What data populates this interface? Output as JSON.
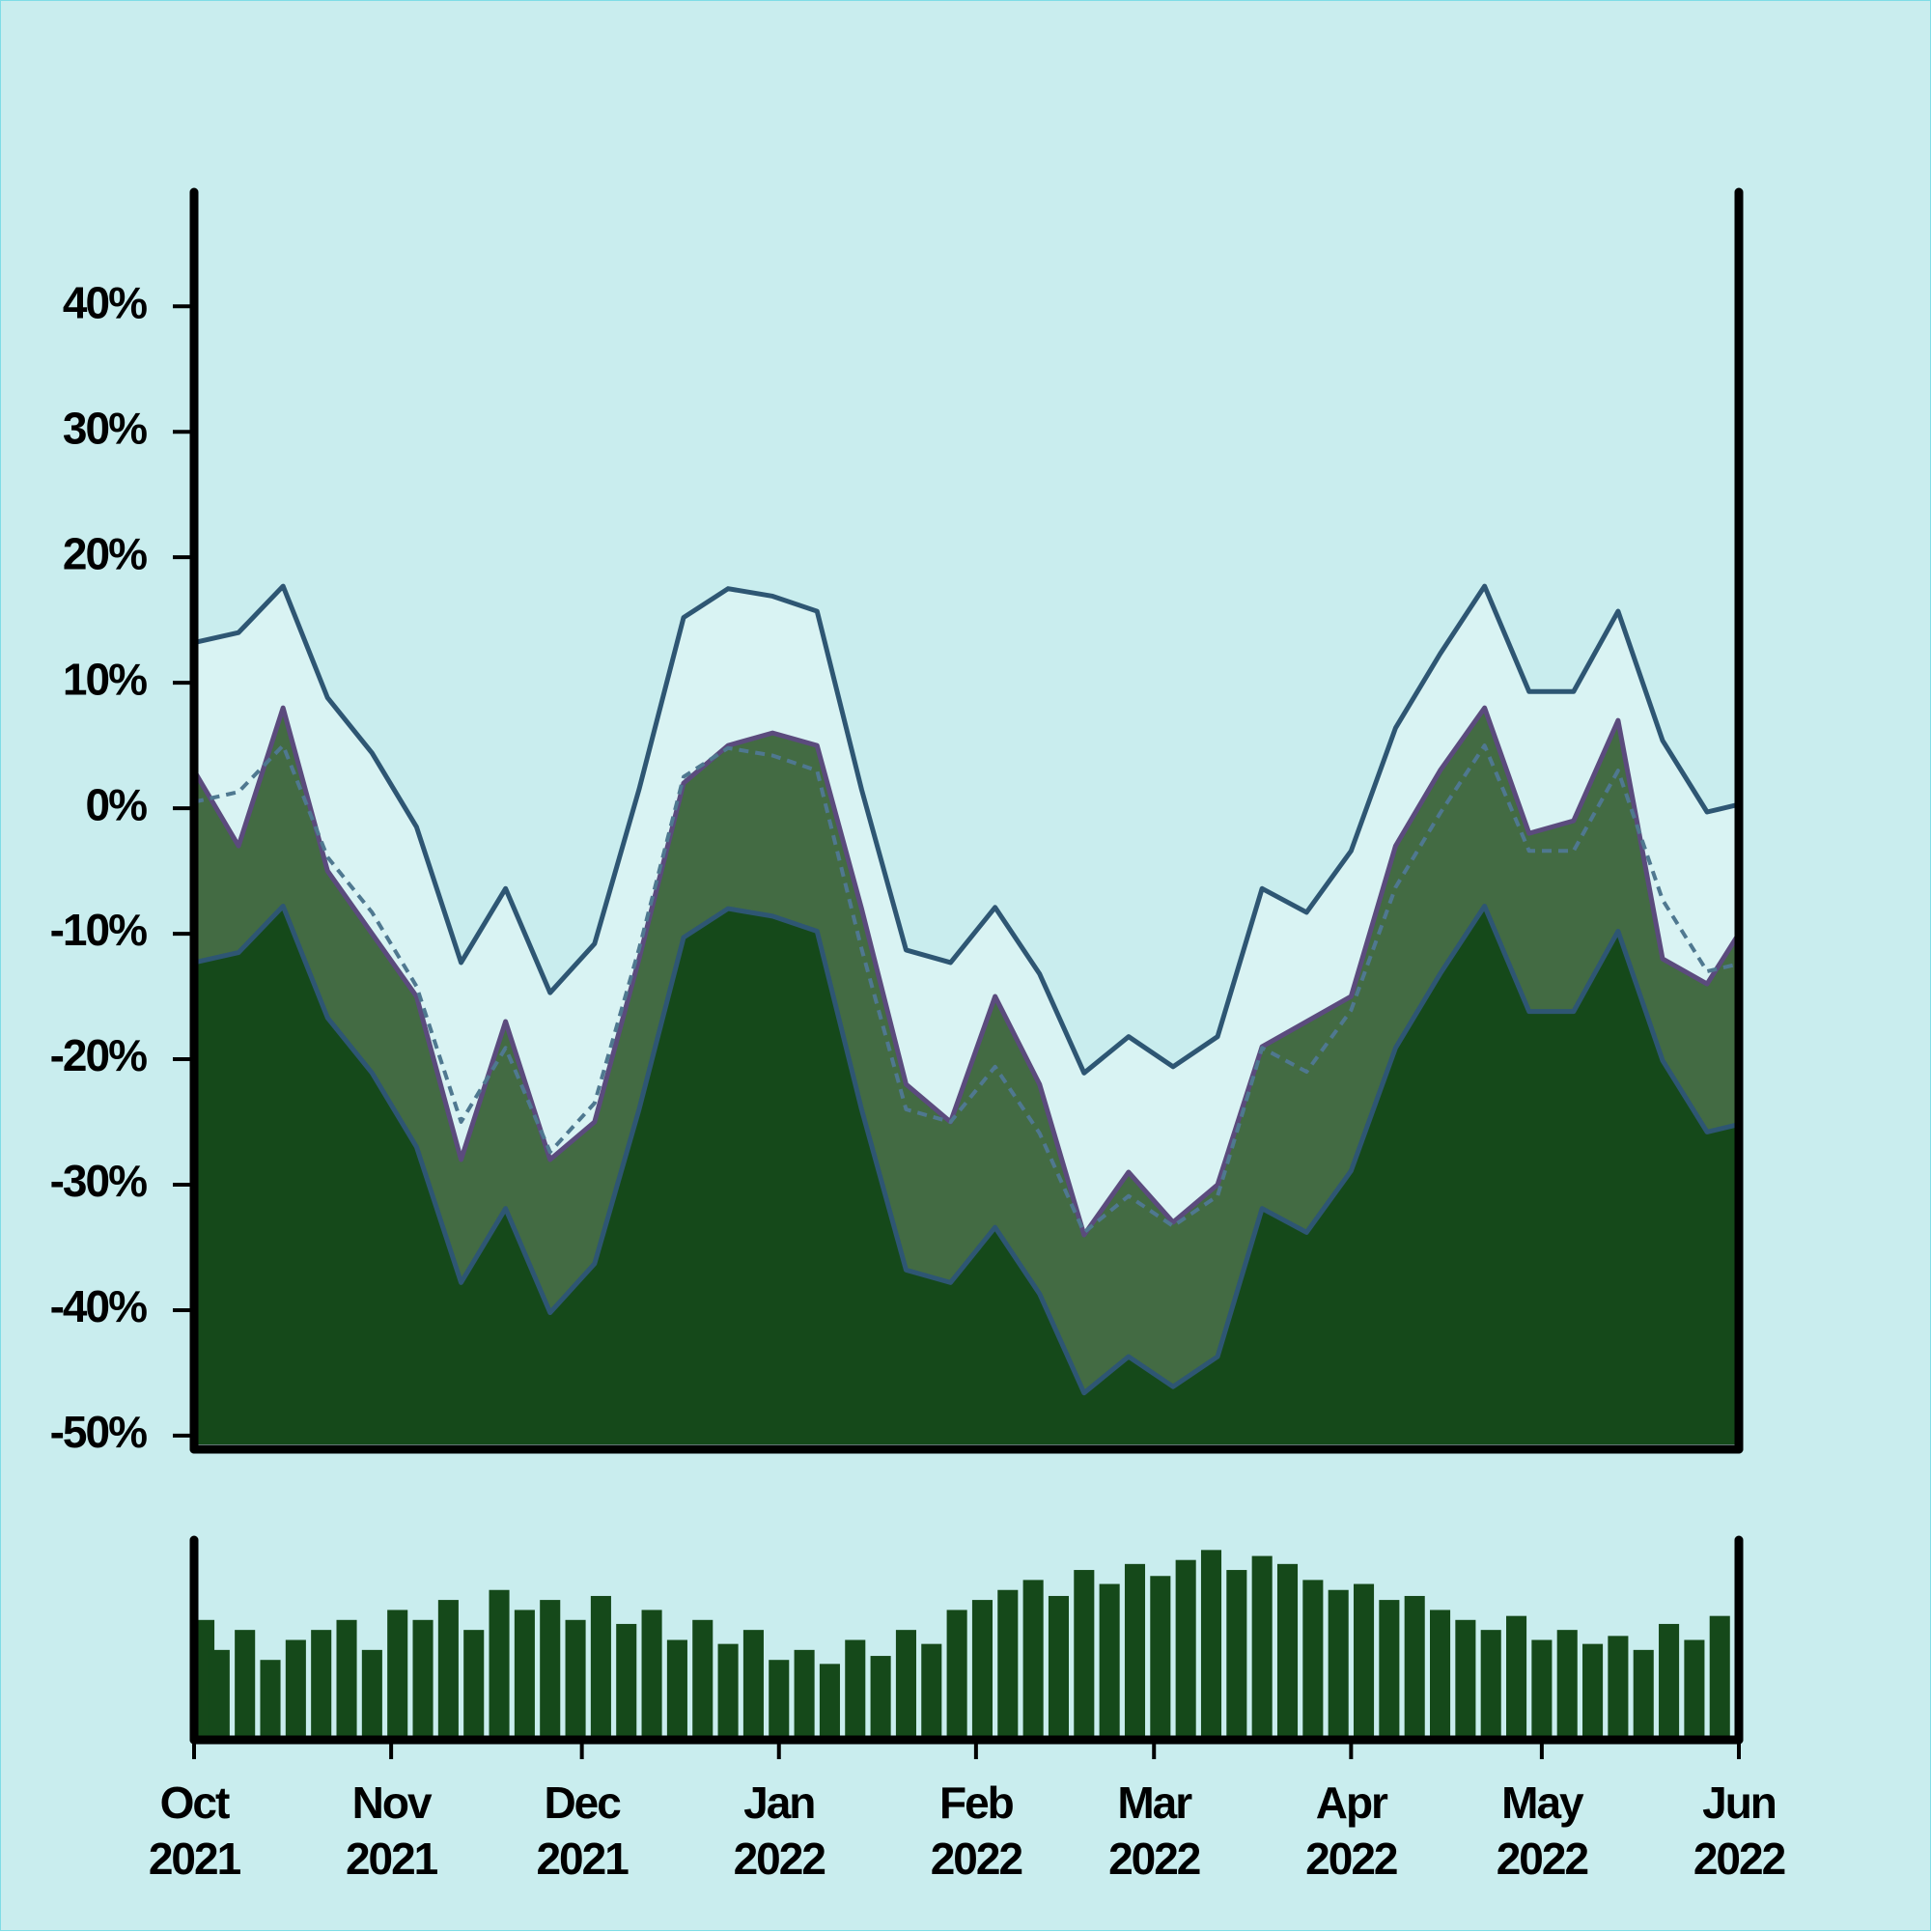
{
  "chart_data": [
    {
      "type": "area",
      "x": [
        0,
        7,
        14,
        21,
        28,
        35,
        42,
        49,
        56,
        63,
        70,
        77,
        84,
        91,
        98,
        105,
        112,
        119,
        126,
        133,
        140,
        147,
        154,
        161,
        168,
        175,
        182,
        189,
        196,
        203,
        210,
        217,
        224,
        231,
        238,
        243
      ],
      "xlim": [
        0,
        243
      ],
      "ylim": [
        -50.7,
        49.1
      ],
      "yticks": [
        {
          "value": -50,
          "label": "-50%"
        },
        {
          "value": -40,
          "label": "-40%"
        },
        {
          "value": -30,
          "label": "-30%"
        },
        {
          "value": -20,
          "label": "-20%"
        },
        {
          "value": -10,
          "label": "-10%"
        },
        {
          "value": 0,
          "label": "0%"
        },
        {
          "value": 10,
          "label": "10%"
        },
        {
          "value": 20,
          "label": "20%"
        },
        {
          "value": 30,
          "label": "30%"
        },
        {
          "value": 40,
          "label": "40%"
        }
      ],
      "band": [
        0,
        2
      ],
      "band_fill": "#d9f3f3",
      "series": [
        {
          "color": "#2e5673",
          "style": "solid",
          "values": [
            13.2,
            14,
            17.7,
            8.8,
            4.4,
            -1.5,
            -12.3,
            -6.4,
            -14.7,
            -10.8,
            1.5,
            15.2,
            17.5,
            16.9,
            15.7,
            1.5,
            -11.3,
            -12.3,
            -7.9,
            -13.2,
            -21.1,
            -18.2,
            -20.6,
            -18.2,
            -6.4,
            -8.3,
            -3.4,
            6.4,
            12.3,
            17.7,
            9.3,
            9.3,
            15.7,
            5.4,
            -0.3,
            0.3
          ]
        },
        {
          "color": "#5b4b7d",
          "style": "solid",
          "fill": "#436b43",
          "values": [
            3,
            -3,
            8,
            -5,
            -10,
            -15,
            -28,
            -17,
            -28,
            -25,
            -12,
            2,
            5,
            6,
            5,
            -8,
            -22,
            -25,
            -15,
            -22,
            -34,
            -29,
            -33,
            -30,
            -19,
            -17,
            -15,
            -3,
            3,
            8,
            -2,
            -1,
            7,
            -12,
            -14,
            -10
          ]
        },
        {
          "color": "#2e5673",
          "style": "solid",
          "fill": "#15491a",
          "values": [
            -12.3,
            -11.5,
            -7.8,
            -16.7,
            -21.1,
            -27,
            -37.8,
            -31.9,
            -40.2,
            -36.3,
            -24,
            -10.3,
            -8,
            -8.6,
            -9.8,
            -24,
            -36.8,
            -37.8,
            -33.4,
            -38.7,
            -46.6,
            -43.7,
            -46.1,
            -43.7,
            -31.9,
            -33.8,
            -28.9,
            -19.1,
            -13.2,
            -7.8,
            -16.2,
            -16.2,
            -9.8,
            -20.1,
            -25.8,
            -25.2
          ]
        },
        {
          "color": "#4f7890",
          "style": "dashed",
          "values": [
            0.5,
            1.3,
            5,
            -3.9,
            -8.3,
            -14.2,
            -25,
            -19.1,
            -27.4,
            -23.5,
            -11.2,
            2.5,
            4.8,
            4.2,
            3,
            -11.2,
            -24,
            -25,
            -20.6,
            -25.9,
            -33.8,
            -30.9,
            -33.3,
            -30.9,
            -19.1,
            -21,
            -16.1,
            -6.3,
            -0.4,
            5,
            -3.4,
            -3.4,
            3,
            -7.3,
            -13,
            -12.4
          ]
        }
      ]
    },
    {
      "type": "bar",
      "x": [
        0,
        4,
        8,
        12,
        16,
        20,
        24,
        28,
        32,
        36,
        40,
        44,
        48,
        52,
        56,
        60,
        64,
        68,
        72,
        76,
        80,
        84,
        88,
        92,
        96,
        100,
        104,
        108,
        112,
        116,
        120,
        124,
        128,
        132,
        136,
        140,
        144,
        148,
        152,
        156,
        160,
        164,
        168,
        172,
        176,
        180,
        184,
        188,
        192,
        196,
        200,
        204,
        208,
        212,
        216,
        220,
        224,
        228,
        232,
        236,
        240
      ],
      "values": [
        60,
        45,
        55,
        40,
        50,
        55,
        60,
        45,
        65,
        60,
        70,
        55,
        75,
        65,
        70,
        60,
        72,
        58,
        65,
        50,
        60,
        48,
        55,
        40,
        45,
        38,
        50,
        42,
        55,
        48,
        65,
        70,
        75,
        80,
        72,
        85,
        78,
        88,
        82,
        90,
        95,
        85,
        92,
        88,
        80,
        75,
        78,
        70,
        72,
        65,
        60,
        55,
        62,
        50,
        55,
        48,
        52,
        45,
        58,
        50,
        62
      ],
      "color": "#15491a",
      "xlim": [
        0,
        243
      ],
      "ylim": [
        0,
        100
      ],
      "xticks": [
        {
          "value": 0,
          "label": "Oct\n2021"
        },
        {
          "value": 31,
          "label": "Nov\n2021"
        },
        {
          "value": 61,
          "label": "Dec\n2021"
        },
        {
          "value": 92,
          "label": "Jan\n2022"
        },
        {
          "value": 123,
          "label": "Feb\n2022"
        },
        {
          "value": 151,
          "label": "Mar\n2022"
        },
        {
          "value": 182,
          "label": "Apr\n2022"
        },
        {
          "value": 212,
          "label": "May\n2022"
        },
        {
          "value": 243,
          "label": "Jun\n2022"
        }
      ]
    }
  ]
}
